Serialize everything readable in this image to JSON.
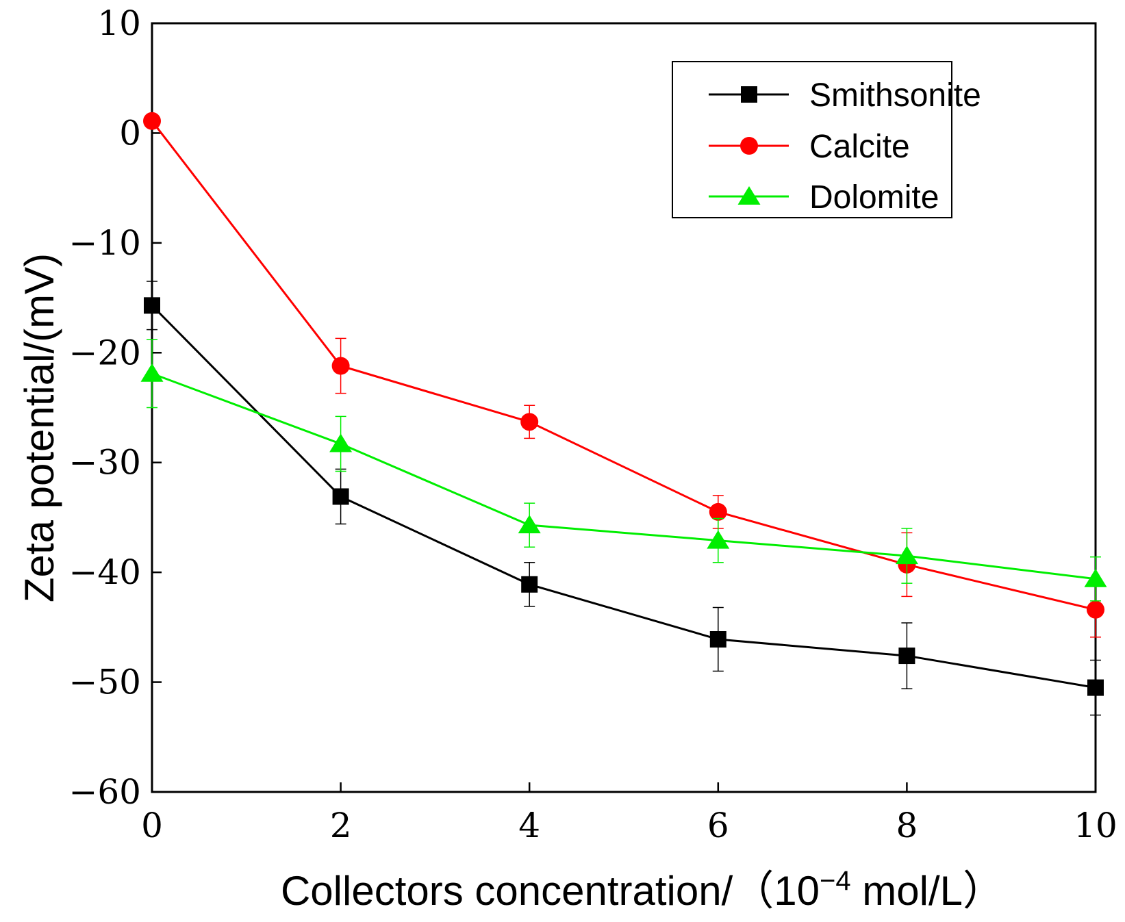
{
  "chart_data": {
    "type": "line",
    "title": "",
    "xlabel": "Collectors concentration/（10",
    "xlabel_superscript": "−4",
    "xlabel_suffix": " mol/L）",
    "ylabel": "Zeta potential/(mV)",
    "xlim": [
      0,
      10
    ],
    "ylim": [
      -60,
      10
    ],
    "xticks": [
      0,
      2,
      4,
      6,
      8,
      10
    ],
    "xtick_labels": [
      "0",
      "2",
      "4",
      "6",
      "8",
      "10"
    ],
    "yticks": [
      10,
      0,
      -10,
      -20,
      -30,
      -40,
      -50,
      -60
    ],
    "ytick_labels": [
      "10",
      "0",
      "−10",
      "−20",
      "−30",
      "−40",
      "−50",
      "−60"
    ],
    "grid": false,
    "legend_position": "top-right",
    "x": [
      0,
      2,
      4,
      6,
      8,
      10
    ],
    "series": [
      {
        "name": "Smithsonite",
        "color": "#000000",
        "marker": "square",
        "values": [
          -15.7,
          -33.1,
          -41.1,
          -46.1,
          -47.6,
          -50.5
        ],
        "errors": [
          2.2,
          2.5,
          2.0,
          2.9,
          3.0,
          2.5
        ]
      },
      {
        "name": "Calcite",
        "color": "#ff0000",
        "marker": "circle",
        "values": [
          1.1,
          -21.2,
          -26.3,
          -34.5,
          -39.3,
          -43.4
        ],
        "errors": [
          0.5,
          2.5,
          1.5,
          1.5,
          2.9,
          2.5
        ]
      },
      {
        "name": "Dolomite",
        "color": "#00ee00",
        "marker": "triangle",
        "values": [
          -21.9,
          -28.3,
          -35.7,
          -37.1,
          -38.5,
          -40.6
        ],
        "errors": [
          3.1,
          2.5,
          2.0,
          2.0,
          2.5,
          2.0
        ]
      }
    ]
  }
}
